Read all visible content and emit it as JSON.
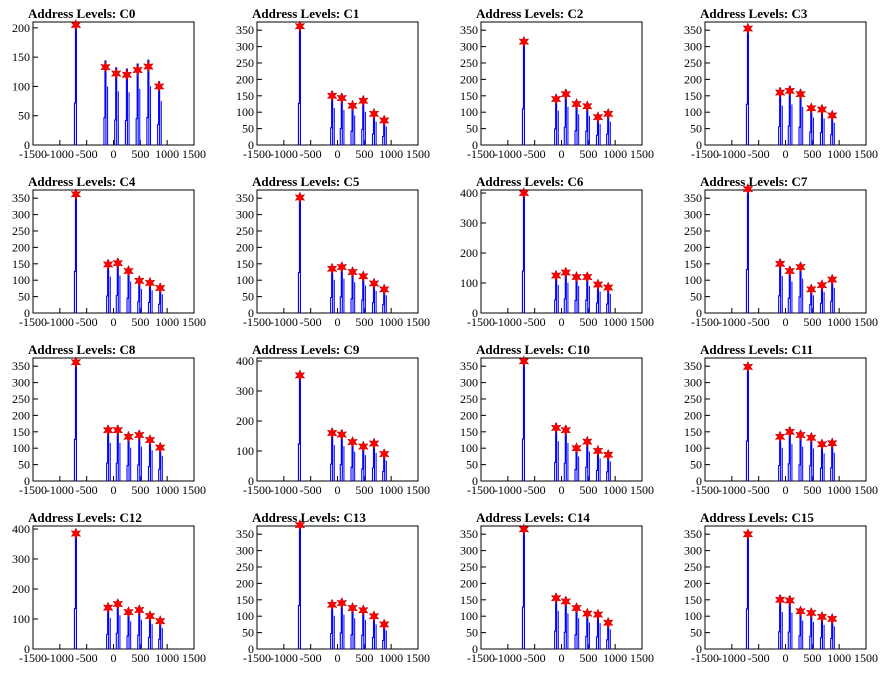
{
  "chart_data": {
    "x_ticks": [
      -1500,
      -1000,
      -500,
      0,
      500,
      1000,
      1500
    ],
    "xlim": [
      -1500,
      1500
    ],
    "colors": {
      "spike": "#0000ff",
      "peak_marker": "#ff0000"
    },
    "marker": "red-star",
    "charts": [
      {
        "type": "bar",
        "title": "Address Levels: C0",
        "ylim": [
          0,
          210
        ],
        "y_ticks": [
          0,
          50,
          100,
          150,
          200
        ],
        "peaks": [
          {
            "x": -700,
            "y": 205
          },
          {
            "x": -150,
            "y": 133
          },
          {
            "x": 50,
            "y": 122
          },
          {
            "x": 250,
            "y": 120
          },
          {
            "x": 450,
            "y": 128
          },
          {
            "x": 650,
            "y": 134
          },
          {
            "x": 850,
            "y": 100
          }
        ]
      },
      {
        "type": "bar",
        "title": "Address Levels: C1",
        "ylim": [
          0,
          375
        ],
        "y_ticks": [
          0,
          50,
          100,
          150,
          200,
          250,
          300,
          350
        ],
        "peaks": [
          {
            "x": -700,
            "y": 362
          },
          {
            "x": -100,
            "y": 150
          },
          {
            "x": 80,
            "y": 143
          },
          {
            "x": 280,
            "y": 120
          },
          {
            "x": 480,
            "y": 135
          },
          {
            "x": 680,
            "y": 95
          },
          {
            "x": 870,
            "y": 75
          }
        ]
      },
      {
        "type": "bar",
        "title": "Address Levels: C2",
        "ylim": [
          0,
          375
        ],
        "y_ticks": [
          0,
          50,
          100,
          150,
          200,
          250,
          300,
          350
        ],
        "peaks": [
          {
            "x": -700,
            "y": 315
          },
          {
            "x": -100,
            "y": 140
          },
          {
            "x": 80,
            "y": 155
          },
          {
            "x": 280,
            "y": 125
          },
          {
            "x": 480,
            "y": 118
          },
          {
            "x": 680,
            "y": 85
          },
          {
            "x": 870,
            "y": 95
          }
        ]
      },
      {
        "type": "bar",
        "title": "Address Levels: C3",
        "ylim": [
          0,
          375
        ],
        "y_ticks": [
          0,
          50,
          100,
          150,
          200,
          250,
          300,
          350
        ],
        "peaks": [
          {
            "x": -700,
            "y": 355
          },
          {
            "x": -100,
            "y": 160
          },
          {
            "x": 80,
            "y": 165
          },
          {
            "x": 280,
            "y": 155
          },
          {
            "x": 480,
            "y": 112
          },
          {
            "x": 680,
            "y": 108
          },
          {
            "x": 870,
            "y": 90
          }
        ]
      },
      {
        "type": "bar",
        "title": "Address Levels: C4",
        "ylim": [
          0,
          375
        ],
        "y_ticks": [
          0,
          50,
          100,
          150,
          200,
          250,
          300,
          350
        ],
        "peaks": [
          {
            "x": -700,
            "y": 362
          },
          {
            "x": -100,
            "y": 148
          },
          {
            "x": 80,
            "y": 152
          },
          {
            "x": 280,
            "y": 128
          },
          {
            "x": 480,
            "y": 98
          },
          {
            "x": 680,
            "y": 92
          },
          {
            "x": 870,
            "y": 76
          }
        ]
      },
      {
        "type": "bar",
        "title": "Address Levels: C5",
        "ylim": [
          0,
          375
        ],
        "y_ticks": [
          0,
          50,
          100,
          150,
          200,
          250,
          300,
          350
        ],
        "peaks": [
          {
            "x": -700,
            "y": 352
          },
          {
            "x": -100,
            "y": 135
          },
          {
            "x": 80,
            "y": 140
          },
          {
            "x": 280,
            "y": 125
          },
          {
            "x": 480,
            "y": 112
          },
          {
            "x": 680,
            "y": 90
          },
          {
            "x": 870,
            "y": 72
          }
        ]
      },
      {
        "type": "bar",
        "title": "Address Levels: C6",
        "ylim": [
          0,
          410
        ],
        "y_ticks": [
          0,
          100,
          200,
          300,
          400
        ],
        "peaks": [
          {
            "x": -700,
            "y": 400
          },
          {
            "x": -100,
            "y": 125
          },
          {
            "x": 80,
            "y": 135
          },
          {
            "x": 280,
            "y": 120
          },
          {
            "x": 480,
            "y": 120
          },
          {
            "x": 680,
            "y": 95
          },
          {
            "x": 870,
            "y": 85
          }
        ]
      },
      {
        "type": "bar",
        "title": "Address Levels: C7",
        "ylim": [
          0,
          375
        ],
        "y_ticks": [
          0,
          50,
          100,
          150,
          200,
          250,
          300,
          350
        ],
        "peaks": [
          {
            "x": -700,
            "y": 378
          },
          {
            "x": -100,
            "y": 150
          },
          {
            "x": 80,
            "y": 128
          },
          {
            "x": 280,
            "y": 140
          },
          {
            "x": 480,
            "y": 72
          },
          {
            "x": 680,
            "y": 85
          },
          {
            "x": 870,
            "y": 102
          }
        ]
      },
      {
        "type": "bar",
        "title": "Address Levels: C8",
        "ylim": [
          0,
          375
        ],
        "y_ticks": [
          0,
          50,
          100,
          150,
          200,
          250,
          300,
          350
        ],
        "peaks": [
          {
            "x": -700,
            "y": 362
          },
          {
            "x": -100,
            "y": 155
          },
          {
            "x": 80,
            "y": 155
          },
          {
            "x": 280,
            "y": 135
          },
          {
            "x": 480,
            "y": 140
          },
          {
            "x": 680,
            "y": 125
          },
          {
            "x": 870,
            "y": 102
          }
        ]
      },
      {
        "type": "bar",
        "title": "Address Levels: C9",
        "ylim": [
          0,
          410
        ],
        "y_ticks": [
          0,
          100,
          200,
          300,
          400
        ],
        "peaks": [
          {
            "x": -700,
            "y": 352
          },
          {
            "x": -100,
            "y": 160
          },
          {
            "x": 80,
            "y": 155
          },
          {
            "x": 280,
            "y": 130
          },
          {
            "x": 480,
            "y": 115
          },
          {
            "x": 680,
            "y": 125
          },
          {
            "x": 870,
            "y": 90
          }
        ]
      },
      {
        "type": "bar",
        "title": "Address Levels: C10",
        "ylim": [
          0,
          375
        ],
        "y_ticks": [
          0,
          50,
          100,
          150,
          200,
          250,
          300,
          350
        ],
        "peaks": [
          {
            "x": -700,
            "y": 365
          },
          {
            "x": -100,
            "y": 162
          },
          {
            "x": 80,
            "y": 155
          },
          {
            "x": 280,
            "y": 100
          },
          {
            "x": 480,
            "y": 120
          },
          {
            "x": 680,
            "y": 92
          },
          {
            "x": 870,
            "y": 80
          }
        ]
      },
      {
        "type": "bar",
        "title": "Address Levels: C11",
        "ylim": [
          0,
          375
        ],
        "y_ticks": [
          0,
          50,
          100,
          150,
          200,
          250,
          300,
          350
        ],
        "peaks": [
          {
            "x": -700,
            "y": 348
          },
          {
            "x": -100,
            "y": 135
          },
          {
            "x": 80,
            "y": 150
          },
          {
            "x": 280,
            "y": 140
          },
          {
            "x": 480,
            "y": 132
          },
          {
            "x": 680,
            "y": 112
          },
          {
            "x": 870,
            "y": 115
          }
        ]
      },
      {
        "type": "bar",
        "title": "Address Levels: C12",
        "ylim": [
          0,
          410
        ],
        "y_ticks": [
          0,
          100,
          200,
          300,
          400
        ],
        "peaks": [
          {
            "x": -700,
            "y": 385
          },
          {
            "x": -100,
            "y": 138
          },
          {
            "x": 80,
            "y": 150
          },
          {
            "x": 280,
            "y": 123
          },
          {
            "x": 480,
            "y": 130
          },
          {
            "x": 680,
            "y": 110
          },
          {
            "x": 870,
            "y": 93
          }
        ]
      },
      {
        "type": "bar",
        "title": "Address Levels: C13",
        "ylim": [
          0,
          375
        ],
        "y_ticks": [
          0,
          50,
          100,
          150,
          200,
          250,
          300,
          350
        ],
        "peaks": [
          {
            "x": -700,
            "y": 378
          },
          {
            "x": -100,
            "y": 135
          },
          {
            "x": 80,
            "y": 140
          },
          {
            "x": 280,
            "y": 125
          },
          {
            "x": 480,
            "y": 118
          },
          {
            "x": 680,
            "y": 100
          },
          {
            "x": 870,
            "y": 75
          }
        ]
      },
      {
        "type": "bar",
        "title": "Address Levels: C14",
        "ylim": [
          0,
          375
        ],
        "y_ticks": [
          0,
          50,
          100,
          150,
          200,
          250,
          300,
          350
        ],
        "peaks": [
          {
            "x": -700,
            "y": 365
          },
          {
            "x": -100,
            "y": 155
          },
          {
            "x": 80,
            "y": 145
          },
          {
            "x": 280,
            "y": 125
          },
          {
            "x": 480,
            "y": 108
          },
          {
            "x": 680,
            "y": 105
          },
          {
            "x": 870,
            "y": 80
          }
        ]
      },
      {
        "type": "bar",
        "title": "Address Levels: C15",
        "ylim": [
          0,
          375
        ],
        "y_ticks": [
          0,
          50,
          100,
          150,
          200,
          250,
          300,
          350
        ],
        "peaks": [
          {
            "x": -700,
            "y": 350
          },
          {
            "x": -100,
            "y": 150
          },
          {
            "x": 80,
            "y": 148
          },
          {
            "x": 280,
            "y": 115
          },
          {
            "x": 480,
            "y": 110
          },
          {
            "x": 680,
            "y": 98
          },
          {
            "x": 870,
            "y": 92
          }
        ]
      }
    ]
  }
}
